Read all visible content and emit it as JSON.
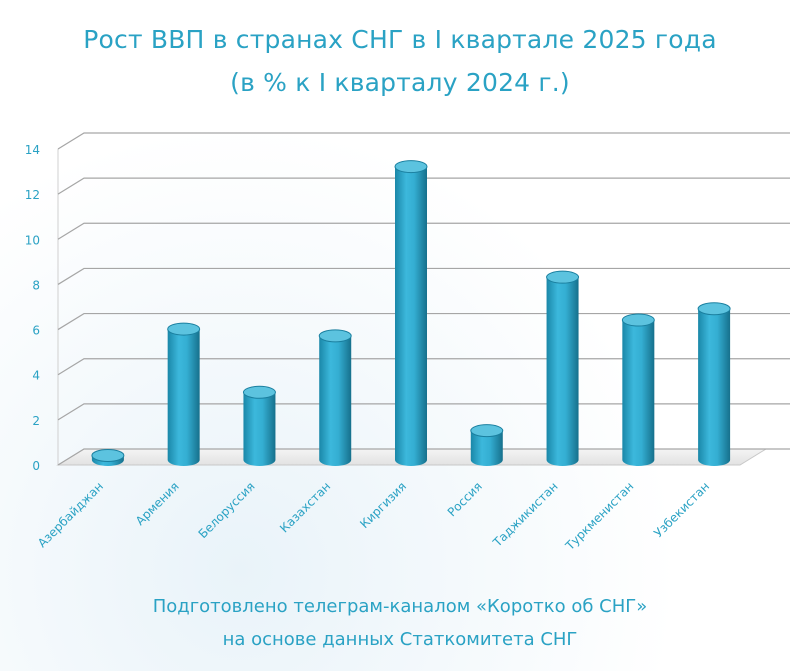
{
  "title_line1": "Рост ВВП в странах СНГ в I квартале 2025 года",
  "title_line2": "(в % к I кварталу 2024 г.)",
  "footer_line1": "Подготовлено телеграм-каналом «Коротко об СНГ»",
  "footer_line2": "на основе данных Статкомитета СНГ",
  "colors": {
    "bar": "#2fa6c9",
    "bar_dark": "#1a7f9f",
    "bar_top": "#5cc3df",
    "tick_text": "#2aa2c4",
    "grid": "#a6a6a6"
  },
  "chart_data": {
    "type": "bar",
    "categories": [
      "Азербайджан",
      "Армения",
      "Белоруссия",
      "Казахстан",
      "Киргизия",
      "Россия",
      "Таджикистан",
      "Туркменистан",
      "Узбекистан"
    ],
    "values": [
      0.2,
      5.8,
      3.0,
      5.5,
      13.0,
      1.3,
      8.1,
      6.2,
      6.7
    ],
    "title": "Рост ВВП в странах СНГ в I квартале 2025 года",
    "subtitle": "(в % к I кварталу 2024 г.)",
    "xlabel": "",
    "ylabel": "",
    "ylim": [
      0,
      14
    ],
    "yticks": [
      0,
      2,
      4,
      6,
      8,
      10,
      12,
      14
    ],
    "grid": true,
    "legend": "none"
  }
}
